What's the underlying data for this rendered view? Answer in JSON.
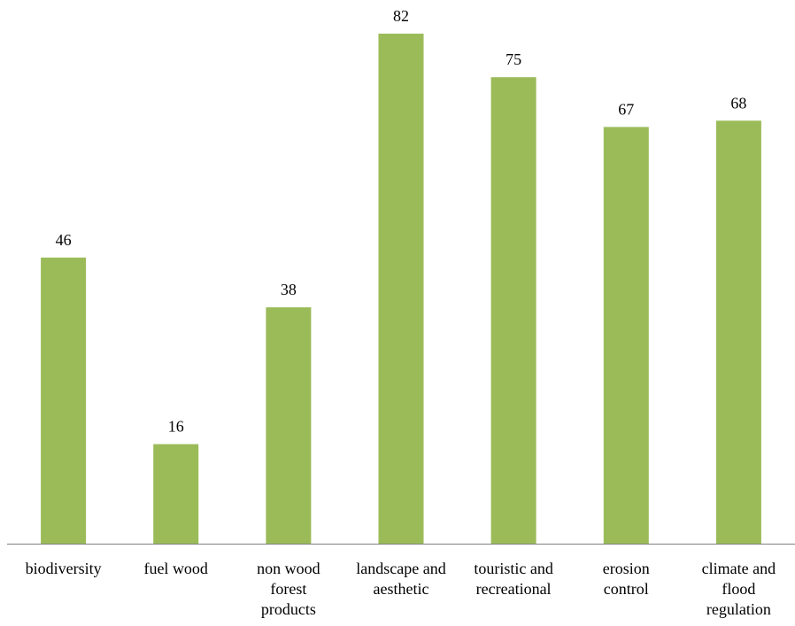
{
  "chart_data": {
    "type": "bar",
    "categories": [
      [
        "biodiversity"
      ],
      [
        "fuel wood"
      ],
      [
        "non wood",
        "forest",
        "products"
      ],
      [
        "landscape and",
        "aesthetic"
      ],
      [
        "touristic and",
        "recreational"
      ],
      [
        "erosion",
        "control"
      ],
      [
        "climate and",
        "flood",
        "regulation"
      ]
    ],
    "values": [
      46,
      16,
      38,
      82,
      75,
      67,
      68
    ],
    "data_labels": [
      "46",
      "16",
      "38",
      "82",
      "75",
      "67",
      "68"
    ],
    "title": "",
    "xlabel": "",
    "ylabel": "",
    "ylim": [
      0,
      82
    ],
    "grid": false,
    "legend": "none",
    "bar_color": "#9bbb59",
    "axis_color": "#808080"
  }
}
